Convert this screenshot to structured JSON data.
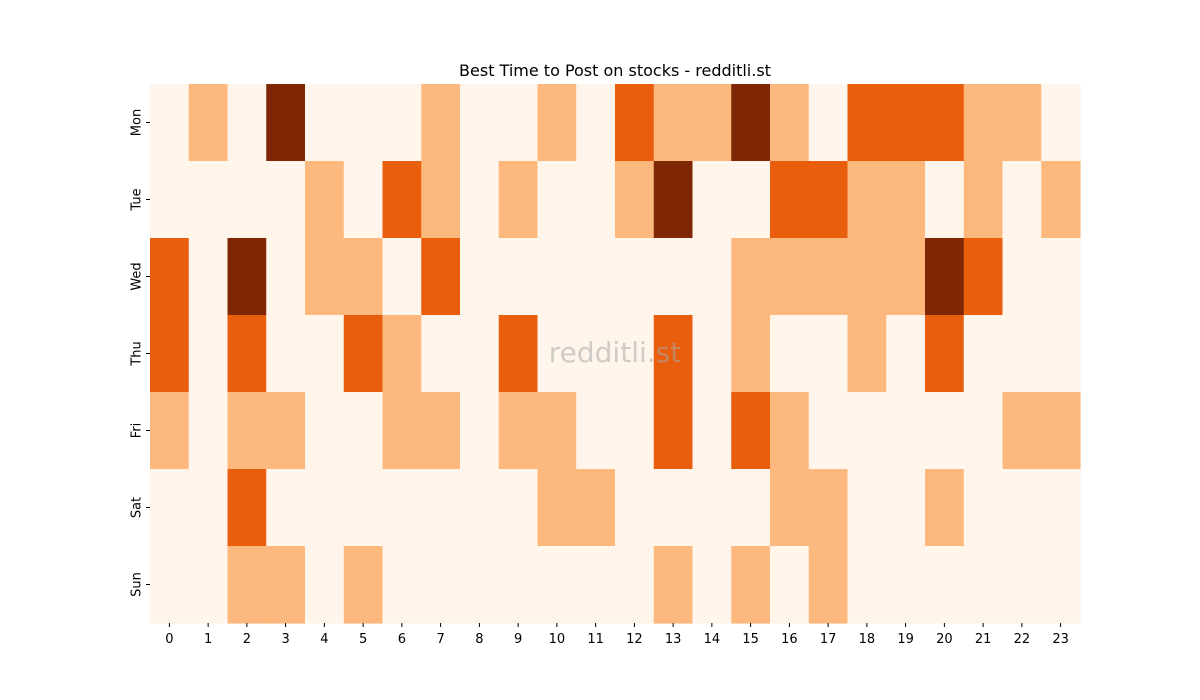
{
  "chart_data": {
    "type": "heatmap",
    "title": "Best Time to Post on stocks - redditli.st",
    "watermark": "redditli.st",
    "xlabel": "",
    "ylabel": "",
    "x_categories": [
      "0",
      "1",
      "2",
      "3",
      "4",
      "5",
      "6",
      "7",
      "8",
      "9",
      "10",
      "11",
      "12",
      "13",
      "14",
      "15",
      "16",
      "17",
      "18",
      "19",
      "20",
      "21",
      "22",
      "23"
    ],
    "y_categories": [
      "Mon",
      "Tue",
      "Wed",
      "Thu",
      "Fri",
      "Sat",
      "Sun"
    ],
    "values": [
      [
        0,
        1,
        0,
        3,
        0,
        0,
        0,
        1,
        0,
        0,
        1,
        0,
        2,
        1,
        1,
        3,
        1,
        0,
        2,
        2,
        2,
        1,
        1,
        0
      ],
      [
        0,
        0,
        0,
        0,
        1,
        0,
        2,
        1,
        0,
        1,
        0,
        0,
        1,
        3,
        0,
        0,
        2,
        2,
        1,
        1,
        0,
        1,
        0,
        1
      ],
      [
        2,
        0,
        3,
        0,
        1,
        1,
        0,
        2,
        0,
        0,
        0,
        0,
        0,
        0,
        0,
        1,
        1,
        1,
        1,
        1,
        3,
        2,
        0,
        0
      ],
      [
        2,
        0,
        2,
        0,
        0,
        2,
        1,
        0,
        0,
        2,
        0,
        0,
        0,
        2,
        0,
        1,
        0,
        0,
        1,
        0,
        2,
        0,
        0,
        0
      ],
      [
        1,
        0,
        1,
        1,
        0,
        0,
        1,
        1,
        0,
        1,
        1,
        0,
        0,
        2,
        0,
        2,
        1,
        0,
        0,
        0,
        0,
        0,
        1,
        1
      ],
      [
        0,
        0,
        2,
        0,
        0,
        0,
        0,
        0,
        0,
        0,
        1,
        1,
        0,
        0,
        0,
        0,
        1,
        1,
        0,
        0,
        1,
        0,
        0,
        0
      ],
      [
        0,
        0,
        1,
        1,
        0,
        1,
        0,
        0,
        0,
        0,
        0,
        0,
        0,
        1,
        0,
        1,
        0,
        1,
        0,
        0,
        0,
        0,
        0,
        0
      ]
    ],
    "colormap": "Oranges",
    "color_scale": [
      "#fff5eb",
      "#fdb97d",
      "#e95e0d",
      "#7f2704"
    ],
    "colorbar": false,
    "grid": false,
    "legend": "none"
  }
}
